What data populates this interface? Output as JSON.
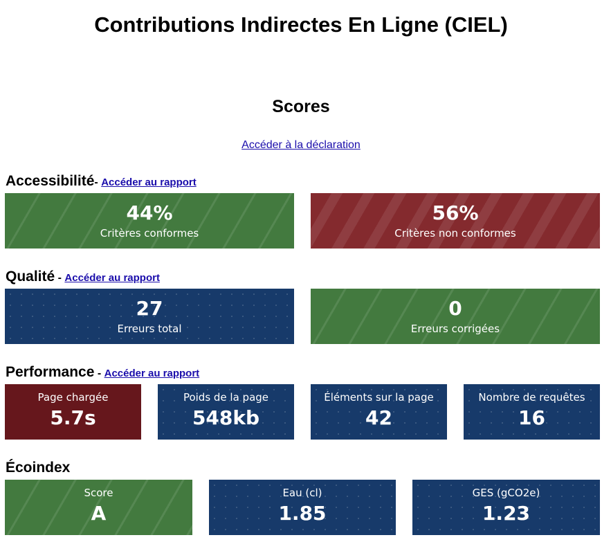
{
  "page": {
    "title": "Contributions Indirectes En Ligne (CIEL)",
    "scores_heading": "Scores",
    "declaration_link": "Accéder à la déclaration"
  },
  "accessibility": {
    "heading": "Accessibilité",
    "separator": "- ",
    "report_link": "Accéder au rapport",
    "cards": [
      {
        "value": "44%",
        "label": "Critères conformes",
        "color": "#437a3f"
      },
      {
        "value": "56%",
        "label": "Critères non conformes",
        "color": "#842a2e"
      }
    ]
  },
  "quality": {
    "heading": "Qualité",
    "separator": " - ",
    "report_link": "Accéder au rapport",
    "cards": [
      {
        "value": "27",
        "label": "Erreurs total",
        "color": "#173a6a"
      },
      {
        "value": "0",
        "label": "Erreurs corrigées",
        "color": "#437a3f"
      }
    ]
  },
  "performance": {
    "heading": "Performance",
    "separator": " - ",
    "report_link": "Accéder au rapport",
    "cards": [
      {
        "label": "Page chargée",
        "value": "5.7s",
        "color": "#66171c"
      },
      {
        "label": "Poids de la page",
        "value": "548kb",
        "color": "#173a6a"
      },
      {
        "label": "Éléments sur la page",
        "value": "42",
        "color": "#173a6a"
      },
      {
        "label": "Nombre de requêtes",
        "value": "16",
        "color": "#173a6a"
      }
    ]
  },
  "ecoindex": {
    "heading": "Écoindex",
    "cards": [
      {
        "label": "Score",
        "value": "A",
        "color": "#437a3f"
      },
      {
        "label": "Eau (cl)",
        "value": "1.85",
        "color": "#173a6a"
      },
      {
        "label": "GES (gCO2e)",
        "value": "1.23",
        "color": "#173a6a"
      }
    ]
  }
}
